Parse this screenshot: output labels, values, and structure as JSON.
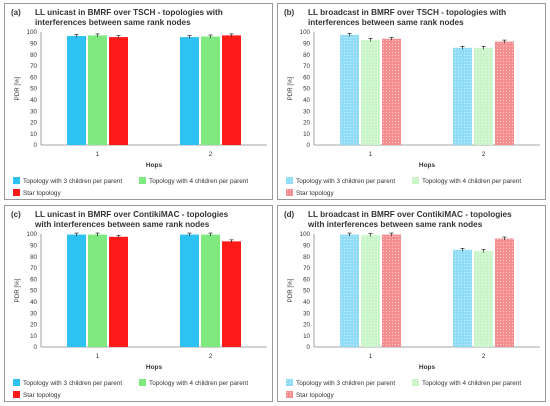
{
  "colors": {
    "solid": [
      "#2ec2f2",
      "#7fe87f",
      "#ff1a1a"
    ],
    "hatched": [
      "#8fdcf6",
      "#c9f5c9",
      "#f58f8f"
    ]
  },
  "chart_data": [
    {
      "type": "bar",
      "panel_label": "(a)",
      "title_lines": [
        "LL unicast in BMRF over TSCH - topologies with",
        "interferences between same rank nodes"
      ],
      "ylabel": "PDR [%]",
      "xlabel": "Hops",
      "categories": [
        "1",
        "2"
      ],
      "ylim": [
        0,
        100
      ],
      "yticks": [
        0,
        10,
        20,
        30,
        40,
        50,
        60,
        70,
        80,
        90,
        100
      ],
      "style": "solid",
      "grid": false,
      "legend_position": "bottom",
      "series": [
        {
          "name": "Topology with 3 children per parent",
          "values": [
            96.5,
            95.5
          ]
        },
        {
          "name": "Topology with 4 children per parent",
          "values": [
            97.0,
            96.0
          ]
        },
        {
          "name": "Star topology",
          "values": [
            95.5,
            97.0
          ]
        }
      ]
    },
    {
      "type": "bar",
      "panel_label": "(b)",
      "title_lines": [
        "LL broadcast in BMRF over TSCH - topologies with",
        "interferences between same rank nodes"
      ],
      "ylabel": "PDR [%]",
      "xlabel": "Hops",
      "categories": [
        "1",
        "2"
      ],
      "ylim": [
        0,
        100
      ],
      "yticks": [
        0,
        10,
        20,
        30,
        40,
        50,
        60,
        70,
        80,
        90,
        100
      ],
      "style": "hatched",
      "grid": false,
      "legend_position": "bottom",
      "series": [
        {
          "name": "Topology with 3 children per parent",
          "values": [
            97.5,
            86.0
          ]
        },
        {
          "name": "Topology with 4 children per parent",
          "values": [
            93.0,
            86.0
          ]
        },
        {
          "name": "Star topology",
          "values": [
            94.0,
            91.5
          ]
        }
      ]
    },
    {
      "type": "bar",
      "panel_label": "(c)",
      "title_lines": [
        "LL unicast in BMRF over ContikiMAC - topologies",
        "with interferences between same rank nodes"
      ],
      "ylabel": "PDR [%]",
      "xlabel": "Hops",
      "categories": [
        "1",
        "2"
      ],
      "ylim": [
        0,
        100
      ],
      "yticks": [
        0,
        10,
        20,
        30,
        40,
        50,
        60,
        70,
        80,
        90,
        100
      ],
      "style": "solid",
      "grid": false,
      "legend_position": "bottom",
      "series": [
        {
          "name": "Topology with 3 children per parent",
          "values": [
            99.5,
            99.5
          ]
        },
        {
          "name": "Topology with 4 children per parent",
          "values": [
            99.5,
            99.5
          ]
        },
        {
          "name": "Star topology",
          "values": [
            97.5,
            93.5
          ]
        }
      ]
    },
    {
      "type": "bar",
      "panel_label": "(d)",
      "title_lines": [
        "LL broadcast in BMRF over ContikiMAC - topologies",
        "with interferences between same rank nodes"
      ],
      "ylabel": "PDR [%]",
      "xlabel": "Hops",
      "categories": [
        "1",
        "2"
      ],
      "ylim": [
        0,
        100
      ],
      "yticks": [
        0,
        10,
        20,
        30,
        40,
        50,
        60,
        70,
        80,
        90,
        100
      ],
      "style": "hatched",
      "grid": false,
      "legend_position": "bottom",
      "series": [
        {
          "name": "Topology with 3 children per parent",
          "values": [
            99.5,
            86.0
          ]
        },
        {
          "name": "Topology with 4 children per parent",
          "values": [
            99.0,
            85.0
          ]
        },
        {
          "name": "Star topology",
          "values": [
            99.5,
            96.0
          ]
        }
      ]
    }
  ]
}
